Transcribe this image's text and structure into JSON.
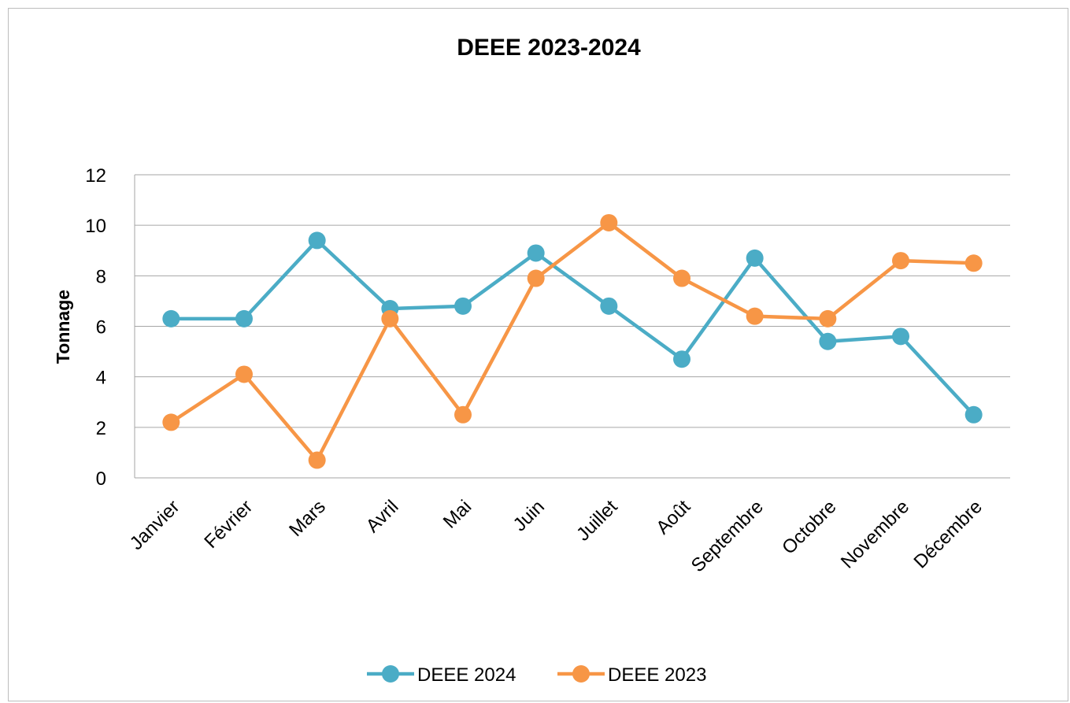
{
  "chart_data": {
    "type": "line",
    "title": "DEEE 2023-2024",
    "xlabel": "",
    "ylabel": "Tonnage",
    "ylim": [
      0,
      12
    ],
    "yticks": [
      "0",
      "2",
      "4",
      "6",
      "8",
      "10",
      "12"
    ],
    "grid": true,
    "legend_position": "bottom",
    "categories": [
      "Janvier",
      "Février",
      "Mars",
      "Avril",
      "Mai",
      "Juin",
      "Juillet",
      "Août",
      "Septembre",
      "Octobre",
      "Novembre",
      "Décembre"
    ],
    "series": [
      {
        "name": "DEEE 2024",
        "color": "#4bacc6",
        "values": [
          6.3,
          6.3,
          9.4,
          6.7,
          6.8,
          8.9,
          6.8,
          4.7,
          8.7,
          5.4,
          5.6,
          2.5
        ]
      },
      {
        "name": "DEEE 2023",
        "color": "#f79646",
        "values": [
          2.2,
          4.1,
          0.7,
          6.3,
          2.5,
          7.9,
          10.1,
          7.9,
          6.4,
          6.3,
          8.6,
          8.5
        ]
      }
    ]
  }
}
